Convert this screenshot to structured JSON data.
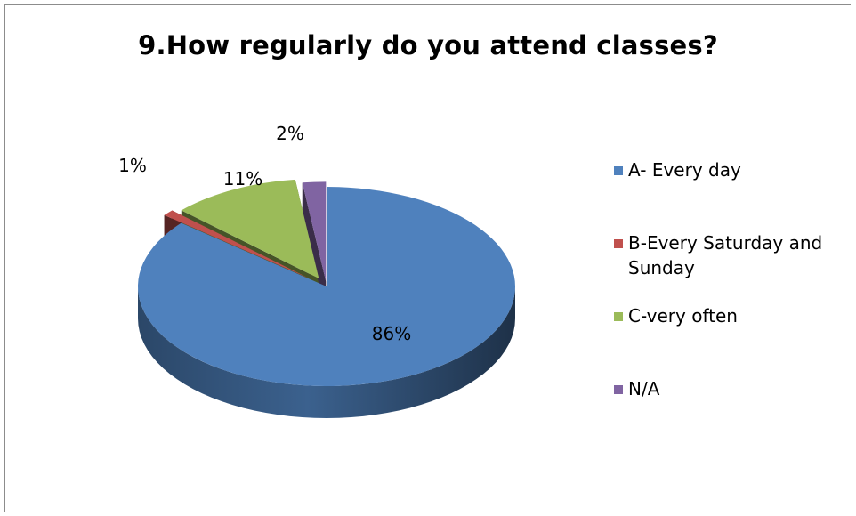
{
  "chart_data": {
    "type": "pie",
    "title": "9.How regularly do you attend classes?",
    "categories": [
      "A- Every day",
      "B-Every Saturday and Sunday",
      "C-very often",
      "N/A"
    ],
    "values": [
      86,
      1,
      11,
      2
    ],
    "labels": [
      "86%",
      "1%",
      "11%",
      "2%"
    ],
    "colors": [
      "#4f81bd",
      "#c0504d",
      "#9bbb59",
      "#8064a2"
    ],
    "exploded": true,
    "three_d": true,
    "legend": "right"
  }
}
